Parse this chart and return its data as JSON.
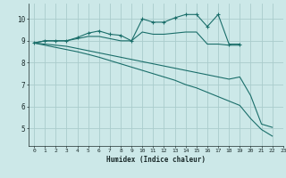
{
  "background_color": "#cce8e8",
  "grid_color": "#aacccc",
  "line_color": "#1a6e6a",
  "xlabel": "Humidex (Indice chaleur)",
  "xlim": [
    -0.5,
    23
  ],
  "ylim": [
    4.2,
    10.7
  ],
  "xticks": [
    0,
    1,
    2,
    3,
    4,
    5,
    6,
    7,
    8,
    9,
    10,
    11,
    12,
    13,
    14,
    15,
    16,
    17,
    18,
    19,
    20,
    21,
    22,
    23
  ],
  "yticks": [
    5,
    6,
    7,
    8,
    9,
    10
  ],
  "series": [
    {
      "x": [
        0,
        1,
        2,
        3,
        4,
        5,
        6,
        7,
        8,
        9,
        10,
        11,
        12,
        13,
        14,
        15,
        16,
        17,
        18,
        19,
        20,
        21,
        22
      ],
      "y": [
        8.9,
        9.0,
        9.0,
        9.0,
        9.15,
        9.35,
        9.45,
        9.3,
        9.25,
        9.0,
        10.0,
        9.85,
        9.85,
        10.05,
        10.2,
        10.2,
        9.65,
        10.2,
        8.85,
        8.85,
        null,
        null,
        null
      ],
      "marker": true
    },
    {
      "x": [
        0,
        1,
        2,
        3,
        4,
        5,
        6,
        7,
        8,
        9,
        10,
        11,
        12,
        13,
        14,
        15,
        16,
        17,
        18,
        19
      ],
      "y": [
        8.9,
        9.0,
        9.0,
        9.0,
        9.1,
        9.2,
        9.2,
        9.1,
        9.0,
        9.0,
        9.4,
        9.3,
        9.3,
        9.35,
        9.4,
        9.4,
        8.85,
        8.85,
        8.8,
        8.8
      ],
      "marker": false
    },
    {
      "x": [
        0,
        1,
        2,
        3,
        4,
        5,
        6,
        7,
        8,
        9,
        10,
        11,
        12,
        13,
        14,
        15,
        16,
        17,
        18,
        19,
        20,
        21,
        22
      ],
      "y": [
        8.9,
        8.85,
        8.8,
        8.75,
        8.65,
        8.55,
        8.45,
        8.35,
        8.25,
        8.15,
        8.05,
        7.95,
        7.85,
        7.75,
        7.65,
        7.55,
        7.45,
        7.35,
        7.25,
        7.35,
        6.5,
        5.2,
        5.05
      ],
      "marker": false
    },
    {
      "x": [
        0,
        1,
        2,
        3,
        4,
        5,
        6,
        7,
        8,
        9,
        10,
        11,
        12,
        13,
        14,
        15,
        16,
        17,
        18,
        19,
        20,
        21,
        22
      ],
      "y": [
        8.9,
        8.8,
        8.7,
        8.6,
        8.5,
        8.38,
        8.25,
        8.1,
        7.95,
        7.8,
        7.65,
        7.5,
        7.35,
        7.2,
        7.0,
        6.85,
        6.65,
        6.45,
        6.25,
        6.05,
        5.45,
        4.95,
        4.65
      ],
      "marker": false
    }
  ]
}
